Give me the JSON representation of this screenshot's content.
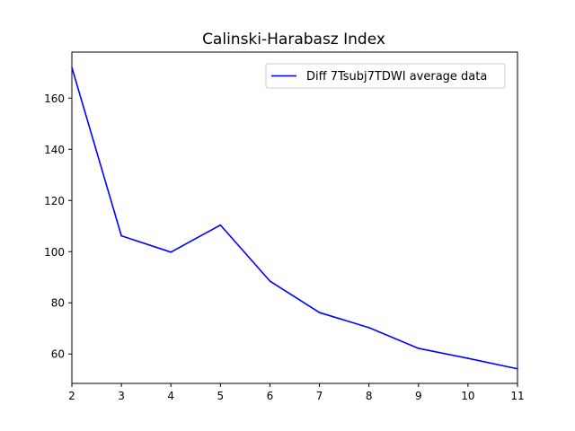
{
  "chart_data": {
    "type": "line",
    "title": "Calinski-Harabasz Index",
    "xlabel": "",
    "ylabel": "",
    "x": [
      2,
      3,
      4,
      5,
      6,
      7,
      8,
      9,
      10,
      11
    ],
    "series": [
      {
        "name": "Diff 7Tsubj7TDWI average data",
        "color": "#0000ff",
        "values": [
          172.0,
          106.2,
          99.8,
          110.4,
          88.5,
          76.2,
          70.3,
          62.2,
          58.3,
          54.2
        ]
      }
    ],
    "xlim": [
      2,
      11
    ],
    "ylim": [
      48.5,
      178.0
    ],
    "xticks": [
      2,
      3,
      4,
      5,
      6,
      7,
      8,
      9,
      10,
      11
    ],
    "yticks": [
      60,
      80,
      100,
      120,
      140,
      160
    ],
    "grid": false,
    "legend_position": "top-right"
  }
}
